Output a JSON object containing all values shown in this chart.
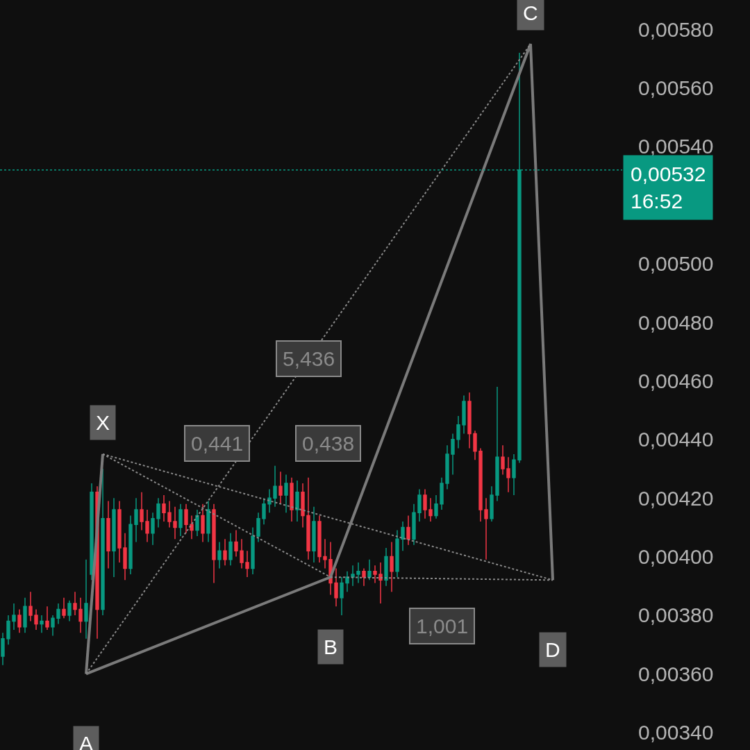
{
  "chart_data": {
    "type": "candlestick",
    "categories": [
      null,
      null,
      null,
      null,
      null,
      null,
      null,
      null,
      null,
      null,
      null,
      null,
      null,
      null,
      null,
      null,
      null,
      null,
      null,
      null,
      null,
      null,
      null,
      null,
      null,
      null,
      null,
      null,
      null,
      null,
      null,
      null,
      null,
      null,
      null,
      null,
      null,
      null,
      null,
      null,
      null,
      null,
      null,
      null,
      null,
      null,
      null,
      null,
      null,
      null,
      null,
      null,
      null,
      null,
      null,
      null,
      null,
      null,
      null,
      null,
      null,
      null,
      null,
      null,
      null,
      null,
      null,
      null,
      null,
      null,
      null,
      null,
      null,
      null,
      null,
      null,
      null,
      null,
      null,
      null,
      null,
      null,
      null,
      null,
      null,
      null,
      null,
      null,
      null,
      null,
      null,
      null,
      null,
      null,
      null,
      null,
      null,
      null,
      null,
      null
    ],
    "ohlc": [
      [
        0.00366,
        0.00374,
        0.00363,
        0.00372
      ],
      [
        0.00372,
        0.0038,
        0.0037,
        0.00378
      ],
      [
        0.00378,
        0.00384,
        0.00375,
        0.0038
      ],
      [
        0.0038,
        0.00382,
        0.00374,
        0.00376
      ],
      [
        0.00376,
        0.00386,
        0.00374,
        0.00383
      ],
      [
        0.00383,
        0.00388,
        0.00378,
        0.0038
      ],
      [
        0.0038,
        0.00382,
        0.00375,
        0.00377
      ],
      [
        0.00377,
        0.0038,
        0.00374,
        0.00378
      ],
      [
        0.00378,
        0.00383,
        0.00375,
        0.00376
      ],
      [
        0.00376,
        0.0038,
        0.00373,
        0.00379
      ],
      [
        0.00379,
        0.00384,
        0.00377,
        0.00382
      ],
      [
        0.00382,
        0.00386,
        0.00379,
        0.0038
      ],
      [
        0.0038,
        0.00385,
        0.00378,
        0.00384
      ],
      [
        0.00384,
        0.00388,
        0.0038,
        0.00382
      ],
      [
        0.00382,
        0.00386,
        0.00374,
        0.00378
      ],
      [
        0.00378,
        0.00399,
        0.00372,
        0.00384
      ],
      [
        0.00394,
        0.00425,
        0.00392,
        0.00422
      ],
      [
        0.00422,
        0.00424,
        0.00372,
        0.00382
      ],
      [
        0.00382,
        0.0043,
        0.0038,
        0.00413
      ],
      [
        0.00413,
        0.00419,
        0.00396,
        0.00402
      ],
      [
        0.00402,
        0.0042,
        0.00393,
        0.00416
      ],
      [
        0.00416,
        0.00419,
        0.00398,
        0.00403
      ],
      [
        0.00403,
        0.00408,
        0.00392,
        0.00396
      ],
      [
        0.00396,
        0.00414,
        0.00394,
        0.00411
      ],
      [
        0.00411,
        0.0042,
        0.00405,
        0.00416
      ],
      [
        0.00416,
        0.00422,
        0.00409,
        0.00412
      ],
      [
        0.00412,
        0.00416,
        0.00405,
        0.00408
      ],
      [
        0.00408,
        0.00415,
        0.00404,
        0.00413
      ],
      [
        0.00413,
        0.0042,
        0.0041,
        0.00418
      ],
      [
        0.00418,
        0.00421,
        0.00412,
        0.00415
      ],
      [
        0.00415,
        0.00419,
        0.0041,
        0.00412
      ],
      [
        0.00412,
        0.00417,
        0.00406,
        0.0041
      ],
      [
        0.0041,
        0.00418,
        0.00407,
        0.00416
      ],
      [
        0.00416,
        0.00418,
        0.00408,
        0.00411
      ],
      [
        0.00411,
        0.00414,
        0.00406,
        0.00409
      ],
      [
        0.00409,
        0.00416,
        0.00407,
        0.00414
      ],
      [
        0.00414,
        0.00418,
        0.00405,
        0.00408
      ],
      [
        0.00408,
        0.00419,
        0.00405,
        0.00416
      ],
      [
        0.00416,
        0.00418,
        0.00391,
        0.00399
      ],
      [
        0.00399,
        0.00405,
        0.00396,
        0.00402
      ],
      [
        0.00402,
        0.00406,
        0.00397,
        0.00399
      ],
      [
        0.00399,
        0.00408,
        0.00397,
        0.00405
      ],
      [
        0.00405,
        0.00409,
        0.004,
        0.00402
      ],
      [
        0.00402,
        0.00406,
        0.00396,
        0.00398
      ],
      [
        0.00398,
        0.00402,
        0.00393,
        0.00396
      ],
      [
        0.00396,
        0.0041,
        0.00394,
        0.00407
      ],
      [
        0.00407,
        0.00415,
        0.00405,
        0.00413
      ],
      [
        0.00413,
        0.0042,
        0.00411,
        0.00418
      ],
      [
        0.00418,
        0.00423,
        0.00415,
        0.0042
      ],
      [
        0.0042,
        0.00431,
        0.00417,
        0.00424
      ],
      [
        0.00424,
        0.00429,
        0.00418,
        0.00421
      ],
      [
        0.00421,
        0.00428,
        0.00415,
        0.00425
      ],
      [
        0.00425,
        0.00427,
        0.00412,
        0.00416
      ],
      [
        0.00416,
        0.00426,
        0.00412,
        0.00422
      ],
      [
        0.00422,
        0.00425,
        0.0041,
        0.00414
      ],
      [
        0.00414,
        0.00427,
        0.00399,
        0.00402
      ],
      [
        0.00402,
        0.00417,
        0.00398,
        0.00412
      ],
      [
        0.00412,
        0.00414,
        0.00398,
        0.004
      ],
      [
        0.004,
        0.00406,
        0.00396,
        0.00399
      ],
      [
        0.00399,
        0.00405,
        0.00387,
        0.00391
      ],
      [
        0.00391,
        0.00396,
        0.00383,
        0.00386
      ],
      [
        0.00386,
        0.00393,
        0.0038,
        0.00391
      ],
      [
        0.00391,
        0.00395,
        0.00388,
        0.00393
      ],
      [
        0.00393,
        0.00397,
        0.0039,
        0.00394
      ],
      [
        0.00394,
        0.00398,
        0.00391,
        0.00395
      ],
      [
        0.00395,
        0.00396,
        0.0039,
        0.00393
      ],
      [
        0.00393,
        0.00399,
        0.00392,
        0.00395
      ],
      [
        0.00395,
        0.00397,
        0.00391,
        0.00394
      ],
      [
        0.00394,
        0.00398,
        0.00384,
        0.00392
      ],
      [
        0.00392,
        0.00403,
        0.0039,
        0.004
      ],
      [
        0.004,
        0.00405,
        0.00388,
        0.00395
      ],
      [
        0.00395,
        0.00409,
        0.00393,
        0.00406
      ],
      [
        0.00406,
        0.00412,
        0.00402,
        0.0041
      ],
      [
        0.0041,
        0.00414,
        0.00404,
        0.00406
      ],
      [
        0.00406,
        0.00418,
        0.00404,
        0.00415
      ],
      [
        0.00415,
        0.00423,
        0.00412,
        0.00421
      ],
      [
        0.00421,
        0.00423,
        0.00413,
        0.00416
      ],
      [
        0.00416,
        0.0042,
        0.00412,
        0.00414
      ],
      [
        0.00414,
        0.00421,
        0.00413,
        0.00418
      ],
      [
        0.00418,
        0.00427,
        0.00416,
        0.00425
      ],
      [
        0.00425,
        0.00438,
        0.00423,
        0.00435
      ],
      [
        0.00435,
        0.00442,
        0.00428,
        0.0044
      ],
      [
        0.0044,
        0.00448,
        0.00437,
        0.00445
      ],
      [
        0.00445,
        0.00455,
        0.00442,
        0.00453
      ],
      [
        0.00453,
        0.00456,
        0.00437,
        0.00442
      ],
      [
        0.00442,
        0.00443,
        0.00433,
        0.00436
      ],
      [
        0.00436,
        0.00437,
        0.00412,
        0.00416
      ],
      [
        0.00416,
        0.0042,
        0.00399,
        0.00413
      ],
      [
        0.00413,
        0.00424,
        0.00412,
        0.00421
      ],
      [
        0.00421,
        0.00458,
        0.00419,
        0.00434
      ],
      [
        0.00434,
        0.00438,
        0.00428,
        0.0043
      ],
      [
        0.0043,
        0.00434,
        0.00422,
        0.00427
      ],
      [
        0.00427,
        0.00435,
        0.00421,
        0.00433
      ],
      [
        0.00433,
        0.00572,
        0.00432,
        0.00532
      ],
      null,
      null,
      null,
      null,
      null,
      null
    ],
    "colors": [
      "#089981",
      "#089981",
      "#089981",
      "#f23645",
      "#089981",
      "#f23645",
      "#f23645",
      "#089981",
      "#f23645",
      "#089981",
      "#089981",
      "#f23645",
      "#089981",
      "#f23645",
      "#f23645",
      "#089981",
      "#089981",
      "#f23645",
      "#089981",
      "#f23645",
      "#089981",
      "#f23645",
      "#f23645",
      "#089981",
      "#089981",
      "#f23645",
      "#f23645",
      "#089981",
      "#089981",
      "#f23645",
      "#f23645",
      "#f23645",
      "#089981",
      "#f23645",
      "#f23645",
      "#089981",
      "#f23645",
      "#089981",
      "#f23645",
      "#089981",
      "#f23645",
      "#089981",
      "#f23645",
      "#f23645",
      "#f23645",
      "#089981",
      "#089981",
      "#089981",
      "#089981",
      "#089981",
      "#f23645",
      "#089981",
      "#f23645",
      "#089981",
      "#f23645",
      "#f23645",
      "#089981",
      "#f23645",
      "#f23645",
      "#f23645",
      "#f23645",
      "#089981",
      "#089981",
      "#089981",
      "#089981",
      "#f23645",
      "#089981",
      "#f23645",
      "#f23645",
      "#089981",
      "#f23645",
      "#089981",
      "#089981",
      "#f23645",
      "#089981",
      "#089981",
      "#f23645",
      "#f23645",
      "#089981",
      "#089981",
      "#089981",
      "#089981",
      "#089981",
      "#089981",
      "#f23645",
      "#f23645",
      "#f23645",
      "#f23645",
      "#089981",
      "#089981",
      "#f23645",
      "#f23645",
      "#089981",
      "#089981",
      null,
      null,
      null,
      null,
      null,
      null
    ],
    "series": [
      {
        "type": "line",
        "color": "#7a7a7a",
        "line_style": "solid",
        "values": [
          null,
          null,
          null,
          null,
          null,
          null,
          null,
          null,
          null,
          null,
          null,
          null,
          null,
          null,
          null,
          0.0036,
          null,
          null,
          null,
          null,
          null,
          null,
          null,
          null,
          null,
          null,
          null,
          null,
          null,
          null,
          null,
          null,
          null,
          null,
          null,
          null,
          null,
          null,
          null,
          null,
          null,
          null,
          null,
          null,
          null,
          null,
          null,
          null,
          null,
          null,
          null,
          null,
          null,
          null,
          null,
          null,
          null,
          null,
          null,
          0.00393,
          null,
          null,
          null,
          null,
          null,
          null,
          null,
          null,
          null,
          null,
          null,
          null,
          null,
          null,
          null,
          null,
          null,
          null,
          null,
          null,
          null,
          null,
          null,
          null,
          null,
          null,
          null,
          null,
          null,
          null,
          null,
          null,
          null,
          null,
          null,
          0.00575,
          null,
          null,
          null,
          0.00392
        ]
      },
      {
        "type": "line",
        "color": "#7a7a7a",
        "line_style": "solid",
        "values": [
          null,
          null,
          null,
          null,
          null,
          null,
          null,
          null,
          null,
          null,
          null,
          null,
          null,
          null,
          null,
          0.0036,
          null,
          null,
          0.00435,
          null,
          null,
          null,
          null,
          null,
          null,
          null,
          null,
          null,
          null,
          null,
          null,
          null,
          null,
          null,
          null,
          null,
          null,
          null,
          null,
          null,
          null,
          null,
          null,
          null,
          null,
          null,
          null,
          null,
          null,
          null,
          null,
          null,
          null,
          null,
          null,
          null,
          null,
          null,
          null,
          null,
          null,
          null,
          null,
          null,
          null,
          null,
          null,
          null,
          null,
          null,
          null,
          null,
          null,
          null,
          null,
          null,
          null,
          null,
          null,
          null,
          null,
          null,
          null,
          null,
          null,
          null,
          null,
          null,
          null,
          null,
          null,
          null,
          null,
          null,
          null,
          null,
          null,
          null,
          null,
          null
        ]
      },
      {
        "type": "line",
        "name": "0,441",
        "color": "#8a8a8a",
        "line_style": "dotted",
        "values": [
          null,
          null,
          null,
          null,
          null,
          null,
          null,
          null,
          null,
          null,
          null,
          null,
          null,
          null,
          null,
          null,
          null,
          null,
          0.00435,
          null,
          null,
          null,
          null,
          null,
          null,
          null,
          null,
          null,
          null,
          null,
          null,
          null,
          null,
          null,
          null,
          null,
          null,
          null,
          null,
          null,
          null,
          null,
          null,
          null,
          null,
          null,
          null,
          null,
          null,
          null,
          null,
          null,
          null,
          null,
          null,
          null,
          null,
          null,
          null,
          0.00393,
          null,
          null,
          null,
          null,
          null,
          null,
          null,
          null,
          null,
          null,
          null,
          null,
          null,
          null,
          null,
          null,
          null,
          null,
          null,
          null,
          null,
          null,
          null,
          null,
          null,
          null,
          null,
          null,
          null,
          null,
          null,
          null,
          null,
          null,
          null,
          null,
          null,
          null,
          null,
          null
        ]
      },
      {
        "type": "line",
        "name": "5,436",
        "color": "#8a8a8a",
        "line_style": "dotted",
        "values": [
          null,
          null,
          null,
          null,
          null,
          null,
          null,
          null,
          null,
          null,
          null,
          null,
          null,
          null,
          null,
          0.0036,
          null,
          null,
          null,
          null,
          null,
          null,
          null,
          null,
          null,
          null,
          null,
          null,
          null,
          null,
          null,
          null,
          null,
          null,
          null,
          null,
          null,
          null,
          null,
          null,
          null,
          null,
          null,
          null,
          null,
          null,
          null,
          null,
          null,
          null,
          null,
          null,
          null,
          null,
          null,
          null,
          null,
          null,
          null,
          null,
          null,
          null,
          null,
          null,
          null,
          null,
          null,
          null,
          null,
          null,
          null,
          null,
          null,
          null,
          null,
          null,
          null,
          null,
          null,
          null,
          null,
          null,
          null,
          null,
          null,
          null,
          null,
          null,
          null,
          null,
          null,
          null,
          null,
          null,
          null,
          0.00575,
          null,
          null,
          null,
          null
        ]
      },
      {
        "type": "line",
        "name": "0,438",
        "color": "#8a8a8a",
        "line_style": "dotted",
        "values": [
          null,
          null,
          null,
          null,
          null,
          null,
          null,
          null,
          null,
          null,
          null,
          null,
          null,
          null,
          null,
          null,
          null,
          null,
          0.00435,
          null,
          null,
          null,
          null,
          null,
          null,
          null,
          null,
          null,
          null,
          null,
          null,
          null,
          null,
          null,
          null,
          null,
          null,
          null,
          null,
          null,
          null,
          null,
          null,
          null,
          null,
          null,
          null,
          null,
          null,
          null,
          null,
          null,
          null,
          null,
          null,
          null,
          null,
          null,
          null,
          null,
          null,
          null,
          null,
          null,
          null,
          null,
          null,
          null,
          null,
          null,
          null,
          null,
          null,
          null,
          null,
          null,
          null,
          null,
          null,
          null,
          null,
          null,
          null,
          null,
          null,
          null,
          null,
          null,
          null,
          null,
          null,
          null,
          null,
          null,
          null,
          null,
          null,
          null,
          null,
          0.00392
        ]
      },
      {
        "type": "line",
        "name": "1,001",
        "color": "#8a8a8a",
        "line_style": "dotted",
        "values": [
          null,
          null,
          null,
          null,
          null,
          null,
          null,
          null,
          null,
          null,
          null,
          null,
          null,
          null,
          null,
          null,
          null,
          null,
          null,
          null,
          null,
          null,
          null,
          null,
          null,
          null,
          null,
          null,
          null,
          null,
          null,
          null,
          null,
          null,
          null,
          null,
          null,
          null,
          null,
          null,
          null,
          null,
          null,
          null,
          null,
          null,
          null,
          null,
          null,
          null,
          null,
          null,
          null,
          null,
          null,
          null,
          null,
          null,
          null,
          0.00393,
          null,
          null,
          null,
          null,
          null,
          null,
          null,
          null,
          null,
          null,
          null,
          null,
          null,
          null,
          null,
          null,
          null,
          null,
          null,
          null,
          null,
          null,
          null,
          null,
          null,
          null,
          null,
          null,
          null,
          null,
          null,
          null,
          null,
          null,
          null,
          null,
          null,
          null,
          null,
          0.00392
        ]
      }
    ],
    "annotations": [
      {
        "text": "X",
        "y": 0.00435
      },
      {
        "text": "A",
        "y": 0.0036
      },
      {
        "text": "B",
        "y": 0.00393
      },
      {
        "text": "C",
        "y": 0.00575
      },
      {
        "text": "D",
        "y": 0.00392
      }
    ],
    "ref_lines": [
      {
        "axis": "y",
        "value": 0.00532,
        "label": "0,00532\n16:52",
        "color": "#089981",
        "line_style": "dotted"
      }
    ],
    "ylim": [
      0.00334,
      0.0059
    ],
    "yticks": [
      {
        "value": 0.0034,
        "label": "0,00340"
      },
      {
        "value": 0.0036,
        "label": "0,00360"
      },
      {
        "value": 0.0038,
        "label": "0,00380"
      },
      {
        "value": 0.004,
        "label": "0,00400"
      },
      {
        "value": 0.0042,
        "label": "0,00420"
      },
      {
        "value": 0.0044,
        "label": "0,00440"
      },
      {
        "value": 0.0046,
        "label": "0,00460"
      },
      {
        "value": 0.0048,
        "label": "0,00480"
      },
      {
        "value": 0.005,
        "label": "0,00500"
      },
      {
        "value": 0.0054,
        "label": "0,00540"
      },
      {
        "value": 0.0056,
        "label": "0,00560"
      },
      {
        "value": 0.0058,
        "label": "0,00580"
      }
    ],
    "tick_labels": "y",
    "grid": false,
    "legend": false
  }
}
